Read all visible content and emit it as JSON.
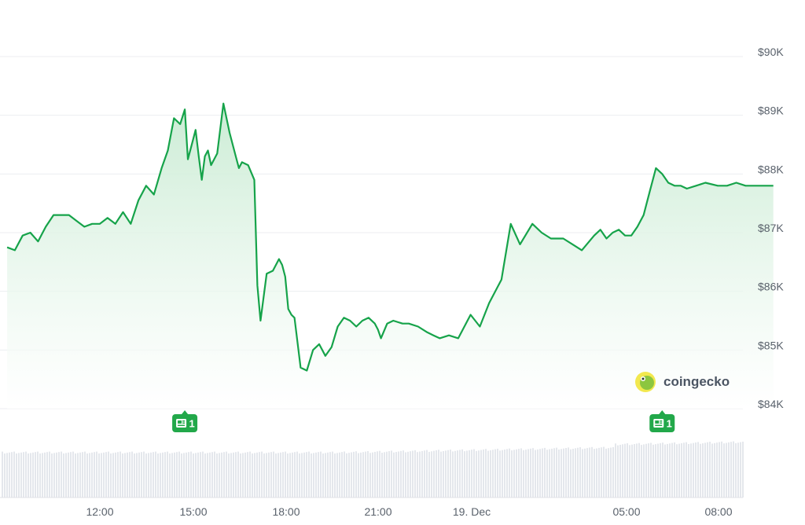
{
  "chart_data": {
    "type": "area",
    "y_axis": {
      "ticks": [
        "$90K",
        "$89K",
        "$88K",
        "$87K",
        "$86K",
        "$85K",
        "$84K"
      ],
      "range": [
        84000,
        90000
      ],
      "position": "right"
    },
    "x_axis": {
      "ticks": [
        "12:00",
        "15:00",
        "18:00",
        "21:00",
        "19. Dec",
        "05:00",
        "08:00"
      ]
    },
    "grid": true,
    "series": [
      {
        "color": "#16a34a",
        "x": [
          9.0,
          9.25,
          9.5,
          9.75,
          10.0,
          10.25,
          10.5,
          10.75,
          11.0,
          11.25,
          11.5,
          11.75,
          12.0,
          12.25,
          12.5,
          12.75,
          13.0,
          13.25,
          13.5,
          13.75,
          14.0,
          14.2,
          14.4,
          14.6,
          14.75,
          14.85,
          15.0,
          15.1,
          15.2,
          15.3,
          15.4,
          15.5,
          15.6,
          15.8,
          16.0,
          16.2,
          16.4,
          16.5,
          16.6,
          16.8,
          17.0,
          17.1,
          17.2,
          17.4,
          17.6,
          17.8,
          17.9,
          18.0,
          18.1,
          18.2,
          18.3,
          18.5,
          18.7,
          18.9,
          19.1,
          19.3,
          19.5,
          19.7,
          19.9,
          20.1,
          20.3,
          20.5,
          20.7,
          20.9,
          21.0,
          21.1,
          21.3,
          21.5,
          21.8,
          22.0,
          22.3,
          22.6,
          22.8,
          23.0,
          23.3,
          23.6,
          24.0,
          24.3,
          24.6,
          25.0,
          25.3,
          25.6,
          26.0,
          26.3,
          26.6,
          27.0,
          27.3,
          27.6,
          28.0,
          28.2,
          28.4,
          28.6,
          28.8,
          29.0,
          29.2,
          29.4,
          29.6,
          29.8,
          30.0,
          30.2,
          30.4,
          30.6,
          30.8,
          31.0,
          31.3,
          31.6,
          32.0,
          32.3,
          32.6,
          32.9,
          33.2,
          33.5,
          33.8
        ],
        "y": [
          86750,
          86700,
          86950,
          87000,
          86850,
          87100,
          87300,
          87300,
          87300,
          87200,
          87100,
          87150,
          87150,
          87250,
          87150,
          87350,
          87150,
          87550,
          87800,
          87650,
          88100,
          88400,
          88950,
          88850,
          89100,
          88250,
          88550,
          88750,
          88300,
          87900,
          88300,
          88400,
          88150,
          88350,
          89200,
          88700,
          88300,
          88100,
          88200,
          88150,
          87900,
          86100,
          85500,
          86300,
          86350,
          86550,
          86450,
          86250,
          85700,
          85600,
          85550,
          84700,
          84650,
          85000,
          85100,
          84900,
          85050,
          85400,
          85550,
          85500,
          85400,
          85500,
          85550,
          85450,
          85350,
          85200,
          85450,
          85500,
          85450,
          85450,
          85400,
          85300,
          85250,
          85200,
          85250,
          85200,
          85600,
          85400,
          85800,
          86200,
          87150,
          86800,
          87150,
          87000,
          86900,
          86900,
          86800,
          86700,
          86950,
          87050,
          86900,
          87000,
          87050,
          86950,
          86950,
          87100,
          87300,
          87700,
          88100,
          88000,
          87850,
          87800,
          87800,
          87750,
          87800,
          87850,
          87800,
          87800,
          87850,
          87800,
          87800,
          87800,
          87800
        ],
        "volume_bars": true
      }
    ],
    "markers": [
      {
        "label": "1",
        "x": 14.75
      },
      {
        "label": "1",
        "x": 30.2
      }
    ],
    "watermark": "coingecko",
    "colors": {
      "line": "#16a34a",
      "fill_top": "#c8ebd2",
      "grid": "#eceef1",
      "marker": "#22a84a",
      "volume": "#e4e7ec"
    }
  }
}
